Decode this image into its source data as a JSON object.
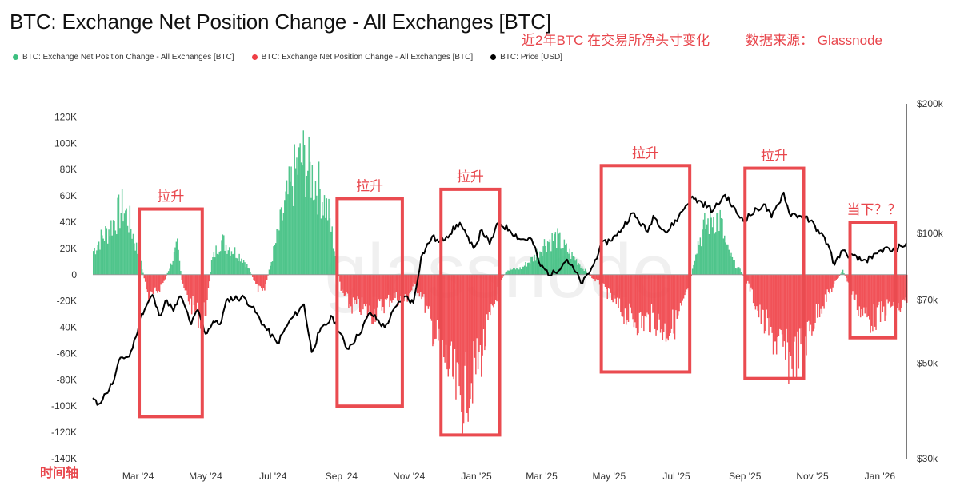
{
  "header": {
    "title": "BTC: Exchange Net Position Change - All Exchanges [BTC]",
    "note_period": "近2年BTC 在交易所净头寸变化",
    "note_source": "数据来源： Glassnode"
  },
  "legend": [
    {
      "label": "BTC: Exchange Net Position Change - All Exchanges [BTC]",
      "color": "#3dbf80"
    },
    {
      "label": "BTC: Exchange Net Position Change - All Exchanges [BTC]",
      "color": "#ef3f46"
    },
    {
      "label": "BTC: Price [USD]",
      "color": "#000000"
    }
  ],
  "watermark": "glassnode",
  "time_axis_label": "时间轴",
  "chart_data": {
    "type": "bar",
    "x_ticks": [
      "Mar '24",
      "May '24",
      "Jul '24",
      "Sep '24",
      "Nov '24",
      "Jan '25",
      "Mar '25",
      "May '25",
      "Jul '25",
      "Sep '25",
      "Nov '25",
      "Jan '26"
    ],
    "y_left": {
      "ticks": [
        "120K",
        "100K",
        "80K",
        "60K",
        "40K",
        "20K",
        "0",
        "-20K",
        "-40K",
        "-60K",
        "-80K",
        "-100K",
        "-120K",
        "-140K"
      ],
      "range": [
        -140000,
        130000
      ]
    },
    "y_right": {
      "scale": "log",
      "ticks": [
        "$200k",
        "$100k",
        "$70k",
        "$50k",
        "$30k"
      ],
      "range": [
        30000,
        200000
      ]
    },
    "x_range": [
      "2024-01-20",
      "2026-01-25"
    ],
    "series": [
      {
        "kind": "net_position_change",
        "anchors": [
          [
            "2024-01-20",
            22000
          ],
          [
            "2024-01-26",
            32000
          ],
          [
            "2024-02-02",
            40000
          ],
          [
            "2024-02-09",
            52000
          ],
          [
            "2024-02-16",
            62000
          ],
          [
            "2024-02-22",
            48000
          ],
          [
            "2024-02-28",
            25000
          ],
          [
            "2024-03-04",
            6000
          ],
          [
            "2024-03-10",
            -22000
          ],
          [
            "2024-03-18",
            -15000
          ],
          [
            "2024-03-24",
            -6000
          ],
          [
            "2024-03-30",
            9000
          ],
          [
            "2024-04-05",
            26000
          ],
          [
            "2024-04-10",
            -12000
          ],
          [
            "2024-04-18",
            -28000
          ],
          [
            "2024-04-26",
            -40000
          ],
          [
            "2024-05-02",
            -28000
          ],
          [
            "2024-05-06",
            12000
          ],
          [
            "2024-05-14",
            32000
          ],
          [
            "2024-05-24",
            24000
          ],
          [
            "2024-06-04",
            14000
          ],
          [
            "2024-06-10",
            3000
          ],
          [
            "2024-06-16",
            -12000
          ],
          [
            "2024-06-22",
            -18000
          ],
          [
            "2024-06-28",
            8000
          ],
          [
            "2024-07-06",
            42000
          ],
          [
            "2024-07-14",
            72000
          ],
          [
            "2024-07-22",
            98000
          ],
          [
            "2024-07-28",
            106000
          ],
          [
            "2024-08-04",
            92000
          ],
          [
            "2024-08-12",
            78000
          ],
          [
            "2024-08-20",
            55000
          ],
          [
            "2024-08-26",
            18000
          ],
          [
            "2024-08-31",
            -15000
          ],
          [
            "2024-09-08",
            -28000
          ],
          [
            "2024-09-18",
            -30000
          ],
          [
            "2024-09-28",
            -36000
          ],
          [
            "2024-10-08",
            -28000
          ],
          [
            "2024-10-18",
            -20000
          ],
          [
            "2024-10-28",
            -24000
          ],
          [
            "2024-11-05",
            -10000
          ],
          [
            "2024-11-12",
            -18000
          ],
          [
            "2024-11-20",
            -45000
          ],
          [
            "2024-11-30",
            -70000
          ],
          [
            "2024-12-10",
            -95000
          ],
          [
            "2024-12-16",
            -118000
          ],
          [
            "2024-12-26",
            -98000
          ],
          [
            "2025-01-06",
            -70000
          ],
          [
            "2025-01-16",
            -30000
          ],
          [
            "2025-01-22",
            -8000
          ],
          [
            "2025-01-28",
            4000
          ],
          [
            "2025-02-10",
            6000
          ],
          [
            "2025-02-22",
            16000
          ],
          [
            "2025-03-04",
            30000
          ],
          [
            "2025-03-14",
            34000
          ],
          [
            "2025-03-24",
            22000
          ],
          [
            "2025-04-04",
            10000
          ],
          [
            "2025-04-14",
            -2000
          ],
          [
            "2025-04-22",
            -8000
          ],
          [
            "2025-04-30",
            -18000
          ],
          [
            "2025-05-10",
            -32000
          ],
          [
            "2025-05-20",
            -40000
          ],
          [
            "2025-05-30",
            -44000
          ],
          [
            "2025-06-10",
            -40000
          ],
          [
            "2025-06-20",
            -52000
          ],
          [
            "2025-06-30",
            -44000
          ],
          [
            "2025-07-08",
            -24000
          ],
          [
            "2025-07-13",
            -8000
          ],
          [
            "2025-07-18",
            24000
          ],
          [
            "2025-07-26",
            44000
          ],
          [
            "2025-08-03",
            54000
          ],
          [
            "2025-08-09",
            50000
          ],
          [
            "2025-08-15",
            24000
          ],
          [
            "2025-08-22",
            10000
          ],
          [
            "2025-08-28",
            3000
          ],
          [
            "2025-09-04",
            -10000
          ],
          [
            "2025-09-14",
            -38000
          ],
          [
            "2025-09-24",
            -55000
          ],
          [
            "2025-10-04",
            -70000
          ],
          [
            "2025-10-12",
            -80000
          ],
          [
            "2025-10-20",
            -70000
          ],
          [
            "2025-10-28",
            -54000
          ],
          [
            "2025-11-06",
            -32000
          ],
          [
            "2025-11-14",
            -20000
          ],
          [
            "2025-11-22",
            -6000
          ],
          [
            "2025-11-28",
            4000
          ],
          [
            "2025-12-04",
            -10000
          ],
          [
            "2025-12-12",
            -30000
          ],
          [
            "2025-12-22",
            -42000
          ],
          [
            "2026-01-02",
            -36000
          ],
          [
            "2026-01-10",
            -28000
          ],
          [
            "2026-01-18",
            -32000
          ],
          [
            "2026-01-25",
            -24000
          ]
        ]
      },
      {
        "kind": "price_usd",
        "points": [
          [
            "2024-01-20",
            41500
          ],
          [
            "2024-01-24",
            40000
          ],
          [
            "2024-02-01",
            42500
          ],
          [
            "2024-02-08",
            45500
          ],
          [
            "2024-02-14",
            51500
          ],
          [
            "2024-02-22",
            51800
          ],
          [
            "2024-02-28",
            57500
          ],
          [
            "2024-03-04",
            65000
          ],
          [
            "2024-03-14",
            72000
          ],
          [
            "2024-03-20",
            64500
          ],
          [
            "2024-03-27",
            70000
          ],
          [
            "2024-04-02",
            66000
          ],
          [
            "2024-04-08",
            71500
          ],
          [
            "2024-04-13",
            67000
          ],
          [
            "2024-04-18",
            61500
          ],
          [
            "2024-04-24",
            66500
          ],
          [
            "2024-05-01",
            58500
          ],
          [
            "2024-05-08",
            62500
          ],
          [
            "2024-05-14",
            61500
          ],
          [
            "2024-05-21",
            70500
          ],
          [
            "2024-06-05",
            71000
          ],
          [
            "2024-06-12",
            67500
          ],
          [
            "2024-06-24",
            60500
          ],
          [
            "2024-07-05",
            55500
          ],
          [
            "2024-07-15",
            62000
          ],
          [
            "2024-07-29",
            68500
          ],
          [
            "2024-08-05",
            53000
          ],
          [
            "2024-08-12",
            59000
          ],
          [
            "2024-08-24",
            64000
          ],
          [
            "2024-09-06",
            54000
          ],
          [
            "2024-09-16",
            58000
          ],
          [
            "2024-09-27",
            65500
          ],
          [
            "2024-10-10",
            60500
          ],
          [
            "2024-10-21",
            68000
          ],
          [
            "2024-10-29",
            71500
          ],
          [
            "2024-11-05",
            69000
          ],
          [
            "2024-11-12",
            88000
          ],
          [
            "2024-11-22",
            98500
          ],
          [
            "2024-11-28",
            95500
          ],
          [
            "2024-12-05",
            98500
          ],
          [
            "2024-12-17",
            106000
          ],
          [
            "2024-12-26",
            95000
          ],
          [
            "2024-12-31",
            93500
          ],
          [
            "2025-01-06",
            102000
          ],
          [
            "2025-01-13",
            94500
          ],
          [
            "2025-01-21",
            106000
          ],
          [
            "2025-01-31",
            102000
          ],
          [
            "2025-02-10",
            97000
          ],
          [
            "2025-02-20",
            97000
          ],
          [
            "2025-02-28",
            84000
          ],
          [
            "2025-03-10",
            80000
          ],
          [
            "2025-03-24",
            87000
          ],
          [
            "2025-04-07",
            76500
          ],
          [
            "2025-04-17",
            84500
          ],
          [
            "2025-04-23",
            93500
          ],
          [
            "2025-05-08",
            99000
          ],
          [
            "2025-05-22",
            111500
          ],
          [
            "2025-06-05",
            101000
          ],
          [
            "2025-06-10",
            110000
          ],
          [
            "2025-06-22",
            100500
          ],
          [
            "2025-07-03",
            109500
          ],
          [
            "2025-07-14",
            121000
          ],
          [
            "2025-07-24",
            118000
          ],
          [
            "2025-08-03",
            113000
          ],
          [
            "2025-08-14",
            123000
          ],
          [
            "2025-08-26",
            110000
          ],
          [
            "2025-09-01",
            108000
          ],
          [
            "2025-09-18",
            117000
          ],
          [
            "2025-09-25",
            109000
          ],
          [
            "2025-10-06",
            124500
          ],
          [
            "2025-10-11",
            111500
          ],
          [
            "2025-10-20",
            110000
          ],
          [
            "2025-10-30",
            107000
          ],
          [
            "2025-11-06",
            102000
          ],
          [
            "2025-11-15",
            94500
          ],
          [
            "2025-11-21",
            84500
          ],
          [
            "2025-11-27",
            91000
          ],
          [
            "2025-12-05",
            89000
          ],
          [
            "2025-12-15",
            86500
          ],
          [
            "2025-12-25",
            87500
          ],
          [
            "2026-01-05",
            92500
          ],
          [
            "2026-01-12",
            91000
          ],
          [
            "2026-01-20",
            93500
          ],
          [
            "2026-01-25",
            95000
          ]
        ]
      }
    ],
    "annotations": [
      {
        "label": "拉升",
        "from": "2024-03-02",
        "to": "2024-04-28",
        "y_top": 50000,
        "y_bottom": -108000
      },
      {
        "label": "拉升",
        "from": "2024-08-28",
        "to": "2024-10-26",
        "y_top": 58000,
        "y_bottom": -100000
      },
      {
        "label": "拉升",
        "from": "2024-11-30",
        "to": "2025-01-22",
        "y_top": 65000,
        "y_bottom": -122000
      },
      {
        "label": "拉升",
        "from": "2025-04-24",
        "to": "2025-07-13",
        "y_top": 83000,
        "y_bottom": -74000
      },
      {
        "label": "拉升",
        "from": "2025-09-01",
        "to": "2025-10-24",
        "y_top": 81000,
        "y_bottom": -79000
      },
      {
        "label": "当下？？",
        "from": "2025-12-05",
        "to": "2026-01-15",
        "y_top": 40000,
        "y_bottom": -48000
      }
    ]
  }
}
